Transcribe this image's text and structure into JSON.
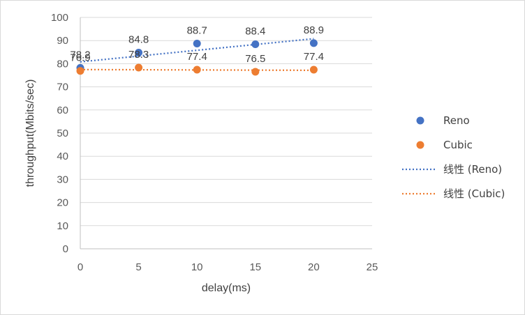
{
  "chart_data": {
    "type": "scatter",
    "xlabel": "delay(ms)",
    "ylabel": "throughput(Mbits/sec)",
    "xlim": [
      0,
      25
    ],
    "ylim": [
      0,
      100
    ],
    "x_ticks": [
      0,
      5,
      10,
      15,
      20,
      25
    ],
    "y_ticks": [
      0,
      10,
      20,
      30,
      40,
      50,
      60,
      70,
      80,
      90,
      100
    ],
    "grid": "horizontal",
    "legend_position": "right",
    "series": [
      {
        "name": "Reno",
        "color": "#4472c4",
        "x": [
          0,
          5,
          10,
          15,
          20
        ],
        "y": [
          78.2,
          84.8,
          88.7,
          88.4,
          88.9
        ]
      },
      {
        "name": "Cubic",
        "color": "#ed7d31",
        "x": [
          0,
          5,
          10,
          15,
          20
        ],
        "y": [
          76.9,
          78.3,
          77.4,
          76.5,
          77.4
        ]
      }
    ],
    "trendlines": [
      {
        "name": "线性 (Reno)",
        "type": "linear",
        "series": "Reno",
        "color": "#4472c4"
      },
      {
        "name": "线性 (Cubic)",
        "type": "linear",
        "series": "Cubic",
        "color": "#ed7d31"
      }
    ]
  }
}
